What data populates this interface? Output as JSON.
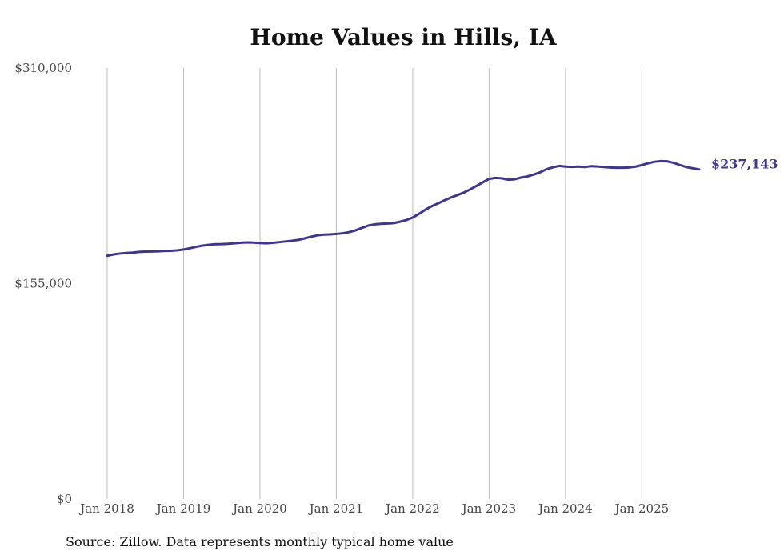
{
  "chart_data": {
    "type": "line",
    "title": "Home Values in Hills, IA",
    "xlabel": "",
    "ylabel": "",
    "ylim": [
      0,
      310000
    ],
    "y_ticks": [
      "$0",
      "$155,000",
      "$310,000"
    ],
    "y_tick_values": [
      0,
      155000,
      310000
    ],
    "x_ticks": [
      "Jan 2018",
      "Jan 2019",
      "Jan 2020",
      "Jan 2021",
      "Jan 2022",
      "Jan 2023",
      "Jan 2024",
      "Jan 2025"
    ],
    "x_tick_dates": [
      "2018-01",
      "2019-01",
      "2020-01",
      "2021-01",
      "2022-01",
      "2023-01",
      "2024-01",
      "2025-01"
    ],
    "xlim": [
      "2018-01",
      "2025-10"
    ],
    "grid": "vertical",
    "line_color": "#3d3590",
    "end_label": "$237,143",
    "series": [
      {
        "dates": [
          "2018-01",
          "2018-02",
          "2018-03",
          "2018-04",
          "2018-05",
          "2018-06",
          "2018-07",
          "2018-08",
          "2018-09",
          "2018-10",
          "2018-11",
          "2018-12",
          "2019-01",
          "2019-02",
          "2019-03",
          "2019-04",
          "2019-05",
          "2019-06",
          "2019-07",
          "2019-08",
          "2019-09",
          "2019-10",
          "2019-11",
          "2019-12",
          "2020-01",
          "2020-02",
          "2020-03",
          "2020-04",
          "2020-05",
          "2020-06",
          "2020-07",
          "2020-08",
          "2020-09",
          "2020-10",
          "2020-11",
          "2020-12",
          "2021-01",
          "2021-02",
          "2021-03",
          "2021-04",
          "2021-05",
          "2021-06",
          "2021-07",
          "2021-08",
          "2021-09",
          "2021-10",
          "2021-11",
          "2021-12",
          "2022-01",
          "2022-02",
          "2022-03",
          "2022-04",
          "2022-05",
          "2022-06",
          "2022-07",
          "2022-08",
          "2022-09",
          "2022-10",
          "2022-11",
          "2022-12",
          "2023-01",
          "2023-02",
          "2023-03",
          "2023-04",
          "2023-05",
          "2023-06",
          "2023-07",
          "2023-08",
          "2023-09",
          "2023-10",
          "2023-11",
          "2023-12",
          "2024-01",
          "2024-02",
          "2024-03",
          "2024-04",
          "2024-05",
          "2024-06",
          "2024-07",
          "2024-08",
          "2024-09",
          "2024-10",
          "2024-11",
          "2024-12",
          "2025-01",
          "2025-02",
          "2025-03",
          "2025-04",
          "2025-05",
          "2025-06",
          "2025-07",
          "2025-08",
          "2025-09",
          "2025-10"
        ],
        "values": [
          175000,
          176000,
          176600,
          177000,
          177300,
          177800,
          178000,
          178100,
          178200,
          178500,
          178600,
          178900,
          179500,
          180400,
          181500,
          182300,
          182900,
          183300,
          183400,
          183600,
          184000,
          184400,
          184600,
          184500,
          184200,
          184000,
          184300,
          184800,
          185300,
          185800,
          186400,
          187500,
          188700,
          189700,
          190200,
          190400,
          190700,
          191200,
          192000,
          193300,
          195000,
          196700,
          197600,
          198000,
          198200,
          198500,
          199500,
          200700,
          202500,
          205200,
          208200,
          210700,
          212700,
          214900,
          216900,
          218600,
          220400,
          222700,
          225200,
          227800,
          230300,
          231000,
          230700,
          229700,
          230000,
          231200,
          232000,
          233400,
          235000,
          237200,
          238600,
          239600,
          239100,
          238900,
          239100,
          238800,
          239400,
          239200,
          238800,
          238500,
          238300,
          238300,
          238500,
          239100,
          240200,
          241500,
          242600,
          243100,
          242900,
          241800,
          240200,
          238800,
          237900,
          237143
        ]
      }
    ]
  },
  "source_note": "Source: Zillow. Data represents monthly typical home value"
}
